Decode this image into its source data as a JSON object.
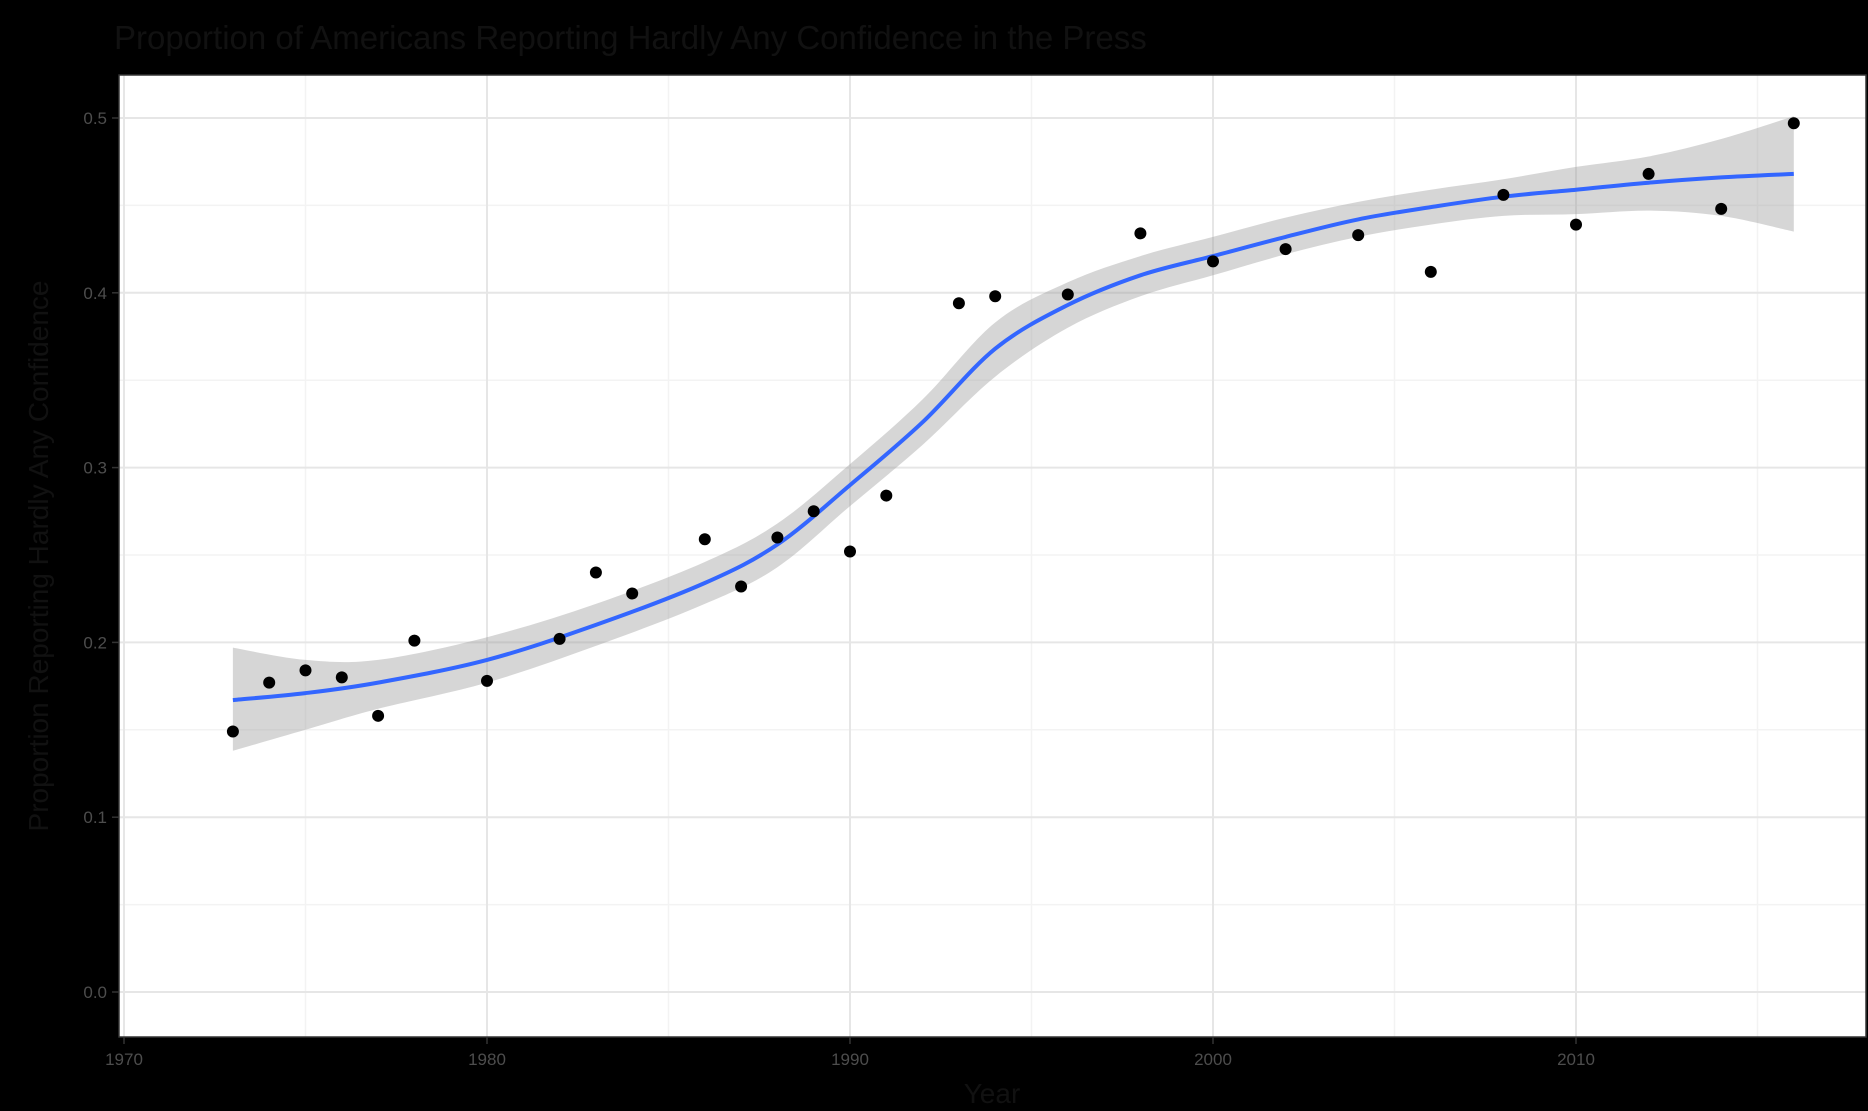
{
  "colors": {
    "background": "#000000",
    "panel": "#ffffff",
    "grid_major": "#e6e6e6",
    "grid_minor": "#f3f3f3",
    "panel_border": "#333333",
    "points": "#000000",
    "smooth_line": "#3366ff",
    "confidence_band": "#999999"
  },
  "chart_data": {
    "type": "scatter",
    "title": "Proportion of Americans Reporting Hardly Any Confidence in the Press",
    "xlabel": "Year",
    "ylabel": "Proportion Reporting Hardly Any Confidence",
    "xlim": [
      1970,
      2018
    ],
    "ylim": [
      0.0,
      0.5
    ],
    "x_ticks": [
      1970,
      1980,
      1990,
      2000,
      2010
    ],
    "x_tick_labels": [
      "1970",
      "1980",
      "1990",
      "2000",
      "2010"
    ],
    "y_ticks": [
      0.0,
      0.1,
      0.2,
      0.3,
      0.4,
      0.5
    ],
    "y_tick_labels": [
      "0.0",
      "0.1",
      "0.2",
      "0.3",
      "0.4",
      "0.5"
    ],
    "grid": true,
    "legend": "none",
    "points": {
      "x": [
        1973,
        1974,
        1975,
        1976,
        1977,
        1978,
        1980,
        1982,
        1983,
        1984,
        1986,
        1987,
        1988,
        1989,
        1990,
        1991,
        1993,
        1994,
        1996,
        1998,
        2000,
        2002,
        2004,
        2006,
        2008,
        2010,
        2012,
        2014,
        2016
      ],
      "y": [
        0.149,
        0.177,
        0.184,
        0.18,
        0.158,
        0.201,
        0.178,
        0.202,
        0.24,
        0.228,
        0.259,
        0.232,
        0.26,
        0.275,
        0.252,
        0.284,
        0.394,
        0.398,
        0.399,
        0.434,
        0.418,
        0.425,
        0.433,
        0.412,
        0.456,
        0.439,
        0.468,
        0.448,
        0.497
      ]
    },
    "smooth": {
      "x": [
        1973,
        1975,
        1977,
        1980,
        1983,
        1986,
        1988,
        1990,
        1992,
        1994,
        1996,
        1998,
        2000,
        2002,
        2004,
        2006,
        2008,
        2010,
        2012,
        2014,
        2016
      ],
      "y": [
        0.167,
        0.171,
        0.177,
        0.19,
        0.21,
        0.234,
        0.256,
        0.29,
        0.326,
        0.368,
        0.393,
        0.41,
        0.421,
        0.432,
        0.442,
        0.449,
        0.455,
        0.459,
        0.463,
        0.466,
        0.468
      ],
      "lower": [
        0.138,
        0.15,
        0.162,
        0.177,
        0.198,
        0.222,
        0.243,
        0.278,
        0.313,
        0.352,
        0.38,
        0.398,
        0.41,
        0.422,
        0.432,
        0.439,
        0.444,
        0.445,
        0.447,
        0.444,
        0.435
      ],
      "upper": [
        0.197,
        0.19,
        0.19,
        0.203,
        0.222,
        0.246,
        0.268,
        0.302,
        0.339,
        0.383,
        0.406,
        0.421,
        0.432,
        0.443,
        0.452,
        0.459,
        0.465,
        0.472,
        0.478,
        0.488,
        0.501
      ]
    }
  }
}
